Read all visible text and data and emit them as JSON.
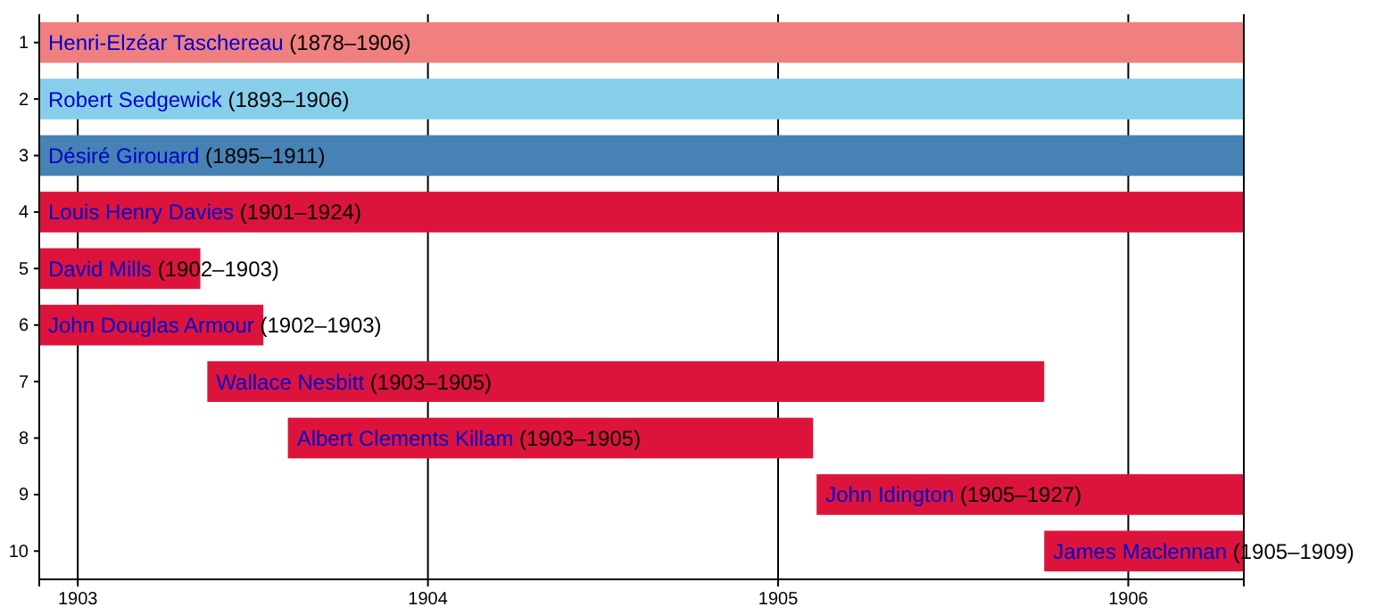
{
  "chart_data": {
    "type": "bar",
    "orientation": "horizontal",
    "categories": [
      "1",
      "2",
      "3",
      "4",
      "5",
      "6",
      "7",
      "8",
      "9",
      "10"
    ],
    "base": [
      1902.89,
      1902.89,
      1902.89,
      1902.89,
      1902.89,
      1902.89,
      1903.37,
      1903.6,
      1905.11,
      1905.76
    ],
    "values": [
      3.44,
      3.44,
      3.44,
      3.44,
      0.46,
      0.64,
      2.39,
      1.5,
      1.22,
      0.57
    ],
    "colors": [
      "#f08080",
      "#87ceeb",
      "#4682b4",
      "#dc143c",
      "#dc143c",
      "#dc143c",
      "#dc143c",
      "#dc143c",
      "#dc143c",
      "#dc143c"
    ],
    "xlim": [
      1902.89,
      1906.33
    ],
    "xticks": [
      1903,
      1904,
      1905,
      1906
    ],
    "grid": "x",
    "annotations": [
      {
        "text": "Henri-Elzéar Taschereau (1878–1906)",
        "x": 1902.89,
        "y": "1"
      },
      {
        "text": "Robert Sedgewick (1893–1906)",
        "x": 1902.89,
        "y": "2"
      },
      {
        "text": "Désiré Girouard (1895–1911)",
        "x": 1902.89,
        "y": "3"
      },
      {
        "text": "Louis Henry Davies (1901–1924)",
        "x": 1902.89,
        "y": "4"
      },
      {
        "text": "David Mills (1902–1903)",
        "x": 1902.89,
        "y": "5"
      },
      {
        "text": "John Douglas Armour (1902–1903)",
        "x": 1902.89,
        "y": "6"
      },
      {
        "text": "Wallace Nesbitt (1903–1905)",
        "x": 1903.37,
        "y": "7"
      },
      {
        "text": "Albert Clements Killam (1903–1905)",
        "x": 1903.6,
        "y": "8"
      },
      {
        "text": "John Idington (1905–1927)",
        "x": 1905.11,
        "y": "9"
      },
      {
        "text": "James Maclennan (1905–1909)",
        "x": 1905.76,
        "y": "10"
      }
    ]
  }
}
